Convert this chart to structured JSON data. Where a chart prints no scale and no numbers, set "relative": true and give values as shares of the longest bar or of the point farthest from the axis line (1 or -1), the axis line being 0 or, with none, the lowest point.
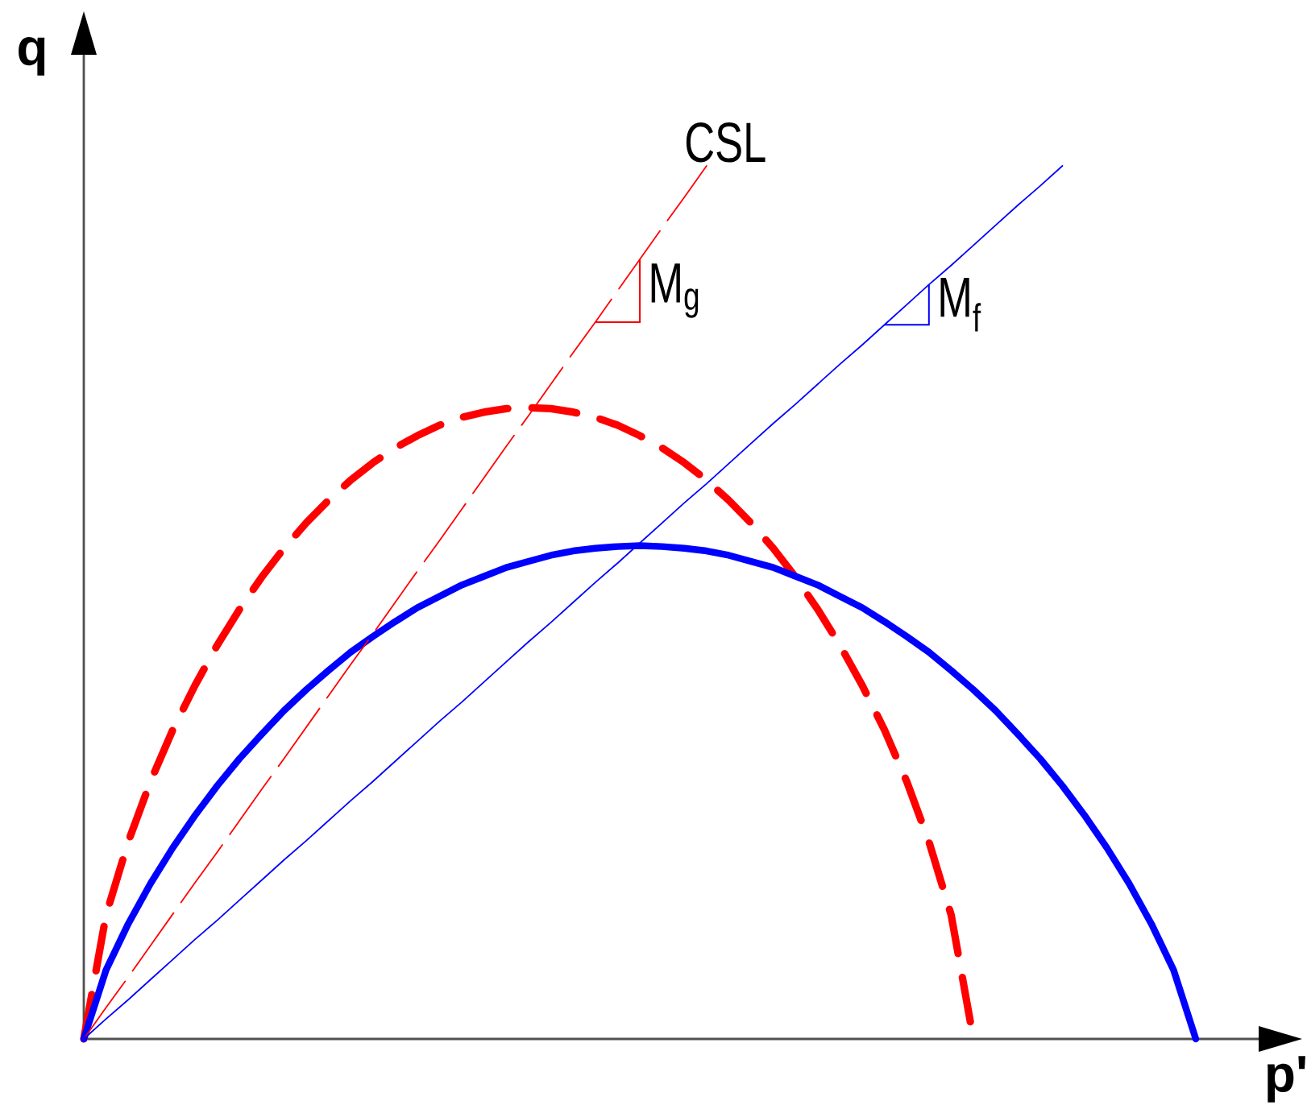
{
  "chart_data": {
    "type": "line",
    "relative": true,
    "xlabel": "p'",
    "ylabel": "q",
    "legend": false,
    "marker": "none",
    "line_style": "solid",
    "categories": [
      null,
      null,
      null,
      null,
      null,
      null,
      null,
      null,
      null,
      null,
      null,
      null,
      null,
      null,
      null,
      null,
      null,
      null,
      null,
      null,
      null,
      null,
      null,
      null,
      null,
      null,
      null,
      null,
      null,
      null,
      null,
      null,
      null,
      null,
      null,
      null,
      null,
      null,
      null,
      null,
      null,
      null,
      null,
      null,
      null,
      null,
      null,
      null,
      null,
      null,
      null
    ],
    "series": [
      {
        "color": "#ff0000",
        "line_style": "dashed",
        "values": [
          0,
          0.142,
          0.226,
          0.295,
          0.354,
          0.405,
          0.451,
          0.492,
          0.529,
          0.562,
          0.591,
          0.617,
          0.64,
          0.66,
          0.677,
          0.691,
          0.703,
          0.712,
          0.718,
          0.722,
          0.723,
          0.722,
          0.718,
          0.712,
          0.703,
          0.691,
          0.677,
          0.66,
          0.64,
          0.617,
          0.591,
          0.562,
          0.529,
          0.492,
          0.451,
          0.405,
          0.354,
          0.295,
          0.226,
          0.142,
          0,
          null,
          null,
          null,
          null,
          null,
          null,
          null,
          null,
          null,
          null
        ]
      },
      {
        "color": "#0000ff",
        "values": [
          0,
          0.079,
          0.132,
          0.178,
          0.219,
          0.256,
          0.29,
          0.321,
          0.349,
          0.376,
          0.4,
          0.422,
          0.443,
          0.461,
          0.478,
          0.494,
          0.507,
          0.52,
          0.53,
          0.54,
          0.547,
          0.554,
          0.559,
          0.562,
          0.564,
          0.565,
          0.564,
          0.562,
          0.559,
          0.554,
          0.547,
          0.54,
          0.53,
          0.52,
          0.507,
          0.494,
          0.478,
          0.461,
          0.443,
          0.422,
          0.4,
          0.376,
          0.349,
          0.321,
          0.29,
          0.256,
          0.219,
          0.178,
          0.132,
          0.079,
          0
        ]
      },
      {
        "name": "CSL",
        "color": "#ff0000",
        "line_style": "dashed",
        "values": [
          0,
          0.036,
          0.071,
          0.107,
          0.143,
          0.179,
          0.214,
          0.25,
          0.286,
          0.321,
          0.357,
          0.393,
          0.429,
          0.464,
          0.5,
          0.536,
          0.571,
          0.607,
          0.643,
          0.679,
          0.714,
          0.75,
          0.786,
          0.821,
          0.857,
          0.893,
          0.929,
          0.964,
          1,
          null,
          null,
          null,
          null,
          null,
          null,
          null,
          null,
          null,
          null,
          null,
          null,
          null,
          null,
          null,
          null,
          null,
          null,
          null,
          null,
          null,
          null
        ]
      },
      {
        "color": "#0000ff",
        "values": [
          0,
          0.023,
          0.045,
          0.068,
          0.091,
          0.114,
          0.136,
          0.159,
          0.182,
          0.205,
          0.227,
          0.25,
          0.273,
          0.295,
          0.318,
          0.341,
          0.364,
          0.386,
          0.409,
          0.432,
          0.455,
          0.477,
          0.5,
          0.523,
          0.545,
          0.568,
          0.591,
          0.614,
          0.636,
          0.659,
          0.682,
          0.705,
          0.727,
          0.75,
          0.773,
          0.795,
          0.818,
          0.841,
          0.864,
          0.886,
          0.909,
          0.932,
          0.955,
          0.977,
          1,
          null,
          null,
          null,
          null,
          null,
          null
        ]
      }
    ],
    "annotations": [
      "M$_{g}$",
      "M$_{f}$"
    ]
  }
}
